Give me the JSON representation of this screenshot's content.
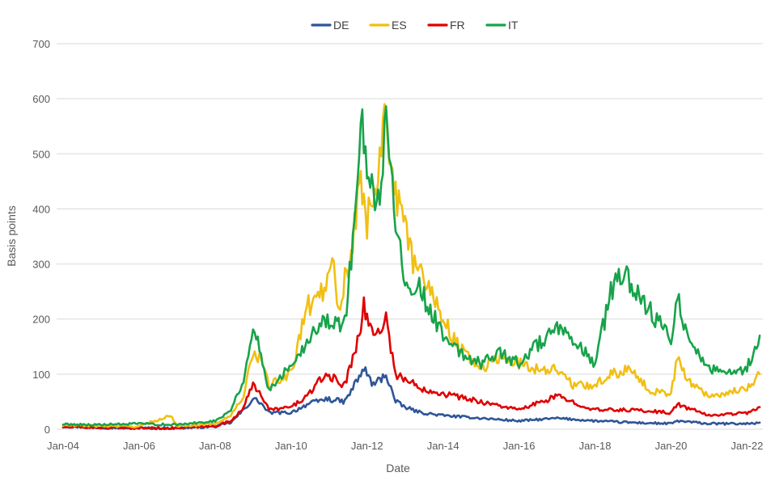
{
  "chart_data": {
    "type": "line",
    "title": "",
    "xlabel": "Date",
    "ylabel": "Basis points",
    "ylim": [
      0,
      700
    ],
    "yticks": [
      0,
      100,
      200,
      300,
      400,
      500,
      600,
      700
    ],
    "xlim": [
      "2004-01",
      "2022-06"
    ],
    "xticks": [
      "Jan-04",
      "Jan-06",
      "Jan-08",
      "Jan-10",
      "Jan-12",
      "Jan-14",
      "Jan-16",
      "Jan-18",
      "Jan-20",
      "Jan-22"
    ],
    "grid": "horizontal",
    "legend_position": "top-center",
    "series": [
      {
        "name": "DE",
        "color": "#2f5597",
        "points": [
          [
            "2004-01",
            5
          ],
          [
            "2005-01",
            3
          ],
          [
            "2006-01",
            2
          ],
          [
            "2007-01",
            2
          ],
          [
            "2008-01",
            5
          ],
          [
            "2008-06",
            12
          ],
          [
            "2008-10",
            35
          ],
          [
            "2009-01",
            55
          ],
          [
            "2009-03",
            50
          ],
          [
            "2009-06",
            30
          ],
          [
            "2010-01",
            30
          ],
          [
            "2010-06",
            45
          ],
          [
            "2010-12",
            55
          ],
          [
            "2011-06",
            50
          ],
          [
            "2011-09",
            80
          ],
          [
            "2011-12",
            110
          ],
          [
            "2012-03",
            80
          ],
          [
            "2012-07",
            100
          ],
          [
            "2012-10",
            50
          ],
          [
            "2013-01",
            40
          ],
          [
            "2013-06",
            30
          ],
          [
            "2014-01",
            25
          ],
          [
            "2015-01",
            20
          ],
          [
            "2016-01",
            15
          ],
          [
            "2017-01",
            20
          ],
          [
            "2018-01",
            15
          ],
          [
            "2019-01",
            12
          ],
          [
            "2020-01",
            10
          ],
          [
            "2020-03",
            15
          ],
          [
            "2021-01",
            10
          ],
          [
            "2022-01",
            10
          ],
          [
            "2022-05",
            12
          ]
        ]
      },
      {
        "name": "ES",
        "color": "#f2bf12",
        "points": [
          [
            "2004-01",
            7
          ],
          [
            "2005-01",
            6
          ],
          [
            "2006-01",
            5
          ],
          [
            "2006-11",
            25
          ],
          [
            "2007-01",
            6
          ],
          [
            "2008-01",
            10
          ],
          [
            "2008-06",
            25
          ],
          [
            "2008-10",
            60
          ],
          [
            "2009-01",
            140
          ],
          [
            "2009-03",
            130
          ],
          [
            "2009-06",
            80
          ],
          [
            "2010-01",
            100
          ],
          [
            "2010-05",
            200
          ],
          [
            "2010-06",
            220
          ],
          [
            "2010-12",
            260
          ],
          [
            "2011-02",
            330
          ],
          [
            "2011-04",
            220
          ],
          [
            "2011-08",
            320
          ],
          [
            "2011-11",
            450
          ],
          [
            "2012-01",
            380
          ],
          [
            "2012-04",
            450
          ],
          [
            "2012-07",
            600
          ],
          [
            "2012-09",
            450
          ],
          [
            "2012-11",
            400
          ],
          [
            "2013-01",
            360
          ],
          [
            "2013-04",
            300
          ],
          [
            "2013-09",
            260
          ],
          [
            "2014-01",
            200
          ],
          [
            "2014-06",
            150
          ],
          [
            "2015-01",
            110
          ],
          [
            "2015-07",
            130
          ],
          [
            "2016-01",
            120
          ],
          [
            "2016-06",
            110
          ],
          [
            "2017-01",
            110
          ],
          [
            "2017-06",
            80
          ],
          [
            "2018-01",
            80
          ],
          [
            "2018-06",
            100
          ],
          [
            "2019-01",
            110
          ],
          [
            "2019-06",
            70
          ],
          [
            "2020-01",
            65
          ],
          [
            "2020-03",
            130
          ],
          [
            "2020-06",
            90
          ],
          [
            "2021-01",
            60
          ],
          [
            "2021-06",
            65
          ],
          [
            "2022-01",
            75
          ],
          [
            "2022-05",
            100
          ]
        ]
      },
      {
        "name": "FR",
        "color": "#e00000",
        "points": [
          [
            "2004-01",
            4
          ],
          [
            "2005-01",
            3
          ],
          [
            "2006-01",
            2
          ],
          [
            "2007-01",
            2
          ],
          [
            "2008-01",
            6
          ],
          [
            "2008-06",
            15
          ],
          [
            "2008-10",
            40
          ],
          [
            "2009-01",
            80
          ],
          [
            "2009-03",
            70
          ],
          [
            "2009-06",
            35
          ],
          [
            "2010-01",
            40
          ],
          [
            "2010-06",
            60
          ],
          [
            "2010-12",
            100
          ],
          [
            "2011-06",
            80
          ],
          [
            "2011-09",
            140
          ],
          [
            "2011-12",
            220
          ],
          [
            "2012-03",
            170
          ],
          [
            "2012-07",
            200
          ],
          [
            "2012-10",
            100
          ],
          [
            "2013-01",
            90
          ],
          [
            "2013-06",
            75
          ],
          [
            "2014-01",
            65
          ],
          [
            "2015-01",
            50
          ],
          [
            "2016-01",
            35
          ],
          [
            "2017-01",
            60
          ],
          [
            "2018-01",
            35
          ],
          [
            "2019-01",
            35
          ],
          [
            "2020-01",
            30
          ],
          [
            "2020-03",
            45
          ],
          [
            "2021-01",
            25
          ],
          [
            "2022-01",
            30
          ],
          [
            "2022-05",
            40
          ]
        ]
      },
      {
        "name": "IT",
        "color": "#17a34a",
        "points": [
          [
            "2004-01",
            9
          ],
          [
            "2005-01",
            8
          ],
          [
            "2006-01",
            10
          ],
          [
            "2007-01",
            8
          ],
          [
            "2008-01",
            15
          ],
          [
            "2008-06",
            35
          ],
          [
            "2008-10",
            90
          ],
          [
            "2009-01",
            180
          ],
          [
            "2009-03",
            150
          ],
          [
            "2009-06",
            70
          ],
          [
            "2010-01",
            120
          ],
          [
            "2010-06",
            160
          ],
          [
            "2010-12",
            200
          ],
          [
            "2011-06",
            190
          ],
          [
            "2011-09",
            380
          ],
          [
            "2011-11",
            560
          ],
          [
            "2012-01",
            470
          ],
          [
            "2012-04",
            380
          ],
          [
            "2012-07",
            560
          ],
          [
            "2012-09",
            430
          ],
          [
            "2012-11",
            350
          ],
          [
            "2013-01",
            280
          ],
          [
            "2013-06",
            250
          ],
          [
            "2014-01",
            170
          ],
          [
            "2014-06",
            140
          ],
          [
            "2015-01",
            120
          ],
          [
            "2015-06",
            140
          ],
          [
            "2016-01",
            120
          ],
          [
            "2016-06",
            150
          ],
          [
            "2017-01",
            180
          ],
          [
            "2017-06",
            160
          ],
          [
            "2018-01",
            120
          ],
          [
            "2018-06",
            250
          ],
          [
            "2018-11",
            290
          ],
          [
            "2019-01",
            250
          ],
          [
            "2019-06",
            220
          ],
          [
            "2020-01",
            160
          ],
          [
            "2020-03",
            250
          ],
          [
            "2020-06",
            170
          ],
          [
            "2021-01",
            110
          ],
          [
            "2021-06",
            100
          ],
          [
            "2022-01",
            110
          ],
          [
            "2022-05",
            170
          ]
        ]
      }
    ]
  }
}
